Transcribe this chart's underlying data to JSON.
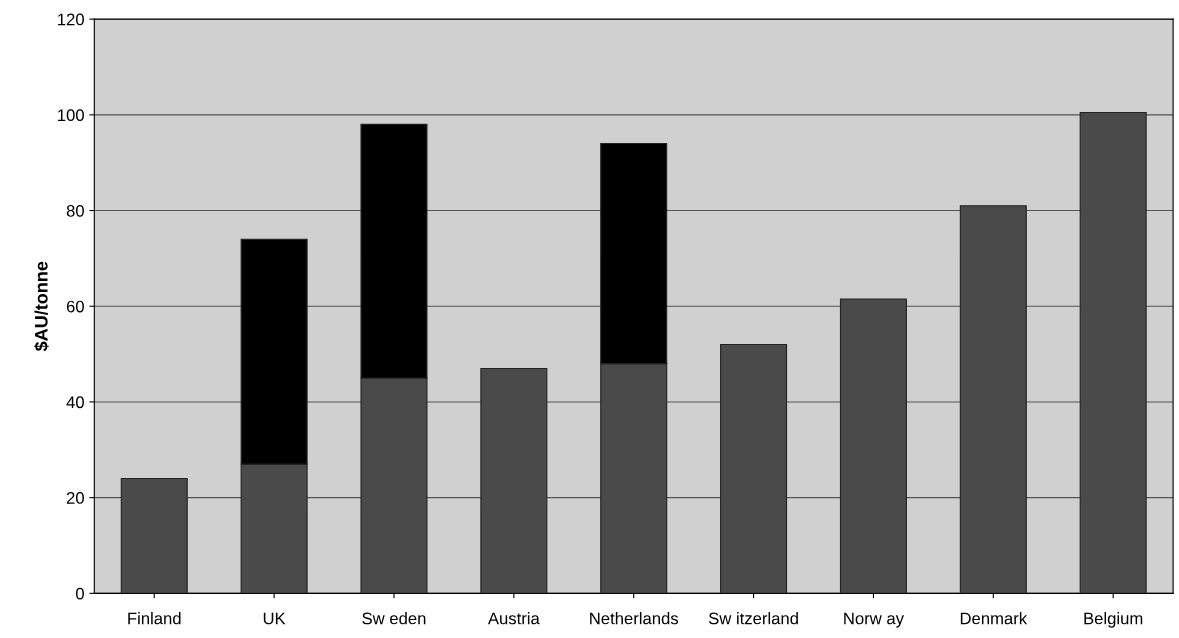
{
  "chart_data": {
    "type": "bar",
    "stacked": true,
    "ylabel": "$AU/tonne",
    "categories": [
      "Finland",
      "UK",
      "Sw eden",
      "Austria",
      "Netherlands",
      "Sw itzerland",
      "Norw ay",
      "Denmark",
      "Belgium"
    ],
    "series": [
      {
        "color": "#4a4a4a",
        "values": [
          24,
          27,
          45,
          47,
          48,
          52,
          61.5,
          81,
          100.5
        ]
      },
      {
        "color": "#000000",
        "values": [
          null,
          47,
          53,
          null,
          46,
          null,
          null,
          null,
          null
        ]
      }
    ],
    "ylim": [
      0,
      120
    ],
    "yticks": [
      0,
      20,
      40,
      60,
      80,
      100,
      120
    ],
    "grid": "y"
  }
}
